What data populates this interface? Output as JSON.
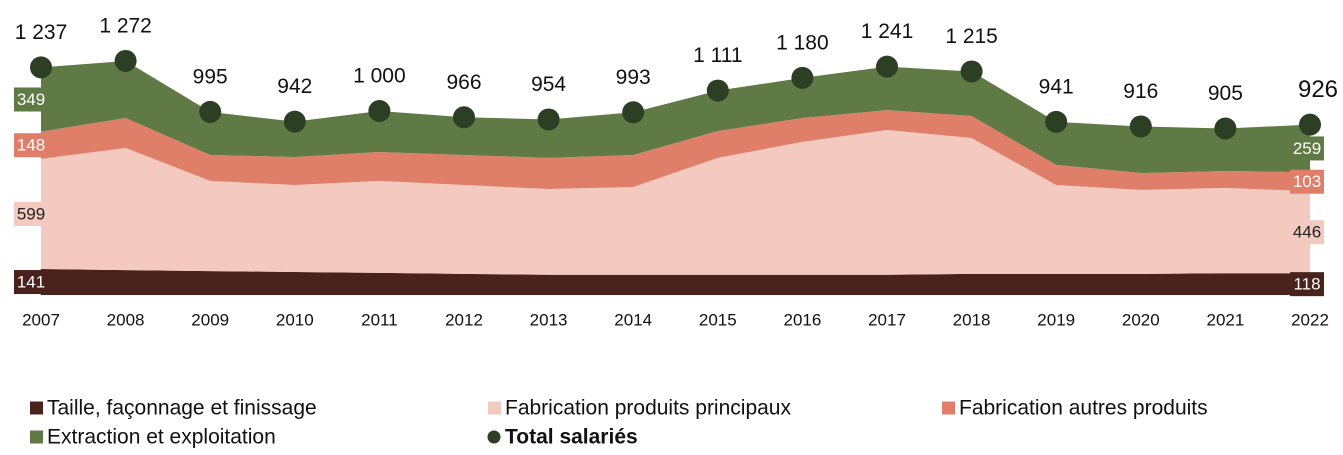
{
  "chart_data": {
    "type": "stacked_area",
    "categories": [
      "2007",
      "2008",
      "2009",
      "2010",
      "2011",
      "2012",
      "2013",
      "2014",
      "2015",
      "2016",
      "2017",
      "2018",
      "2019",
      "2020",
      "2021",
      "2022"
    ],
    "series": [
      {
        "name": "Taille, façonnage et finissage",
        "color": "#4a221c",
        "values": [
          141,
          135,
          130,
          125,
          120,
          115,
          110,
          110,
          110,
          110,
          110,
          115,
          115,
          115,
          118,
          118
        ]
      },
      {
        "name": "Fabrication produits principaux",
        "color": "#f4c9c0",
        "values": [
          599,
          664,
          490,
          473,
          500,
          483,
          466,
          477,
          635,
          722,
          787,
          738,
          483,
          456,
          464,
          446
        ]
      },
      {
        "name": "Fabrication autres produits",
        "color": "#e07f69",
        "values": [
          148,
          163,
          141,
          152,
          157,
          163,
          169,
          174,
          146,
          130,
          108,
          120,
          109,
          92,
          92,
          103
        ]
      },
      {
        "name": "Extraction et exploitation",
        "color": "#5f7a44",
        "values": [
          349,
          310,
          234,
          192,
          223,
          205,
          209,
          232,
          220,
          218,
          236,
          242,
          234,
          253,
          231,
          259
        ]
      },
      {
        "name": "Total salariés",
        "color": "#2c3e24",
        "type": "dot",
        "values": [
          1237,
          1272,
          995,
          942,
          1000,
          966,
          954,
          993,
          1111,
          1180,
          1241,
          1215,
          941,
          916,
          905,
          926
        ],
        "value_labels": [
          "1 237",
          "1 272",
          "995",
          "942",
          "1 000",
          "966",
          "954",
          "993",
          "1 111",
          "1 180",
          "1 241",
          "1 215",
          "941",
          "916",
          "905",
          "926"
        ]
      }
    ]
  }
}
